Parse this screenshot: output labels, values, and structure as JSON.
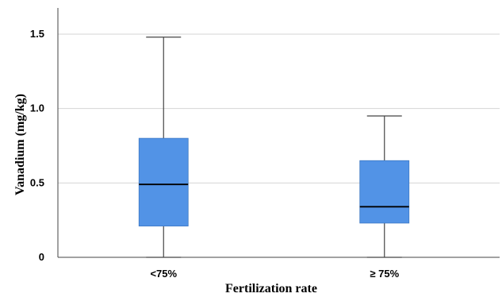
{
  "chart_data": {
    "type": "box",
    "title": "",
    "xlabel": "Fertilization rate",
    "ylabel": "Vanadium (mg/kg)",
    "ylim": [
      0,
      1.65
    ],
    "yticks": [
      {
        "value": 0,
        "label": "0"
      },
      {
        "value": 0.5,
        "label": "0.5"
      },
      {
        "value": 1.0,
        "label": "1.0"
      },
      {
        "value": 1.5,
        "label": "1.5"
      }
    ],
    "grid": true,
    "box_color": "#5293E6",
    "categories": [
      "<75%",
      "≥ 75%"
    ],
    "boxes": [
      {
        "category": "<75%",
        "min": 0.0,
        "q1": 0.21,
        "median": 0.49,
        "q3": 0.8,
        "max": 1.48
      },
      {
        "category": "≥ 75%",
        "min": 0.0,
        "q1": 0.23,
        "median": 0.34,
        "q3": 0.65,
        "max": 0.95
      }
    ]
  }
}
